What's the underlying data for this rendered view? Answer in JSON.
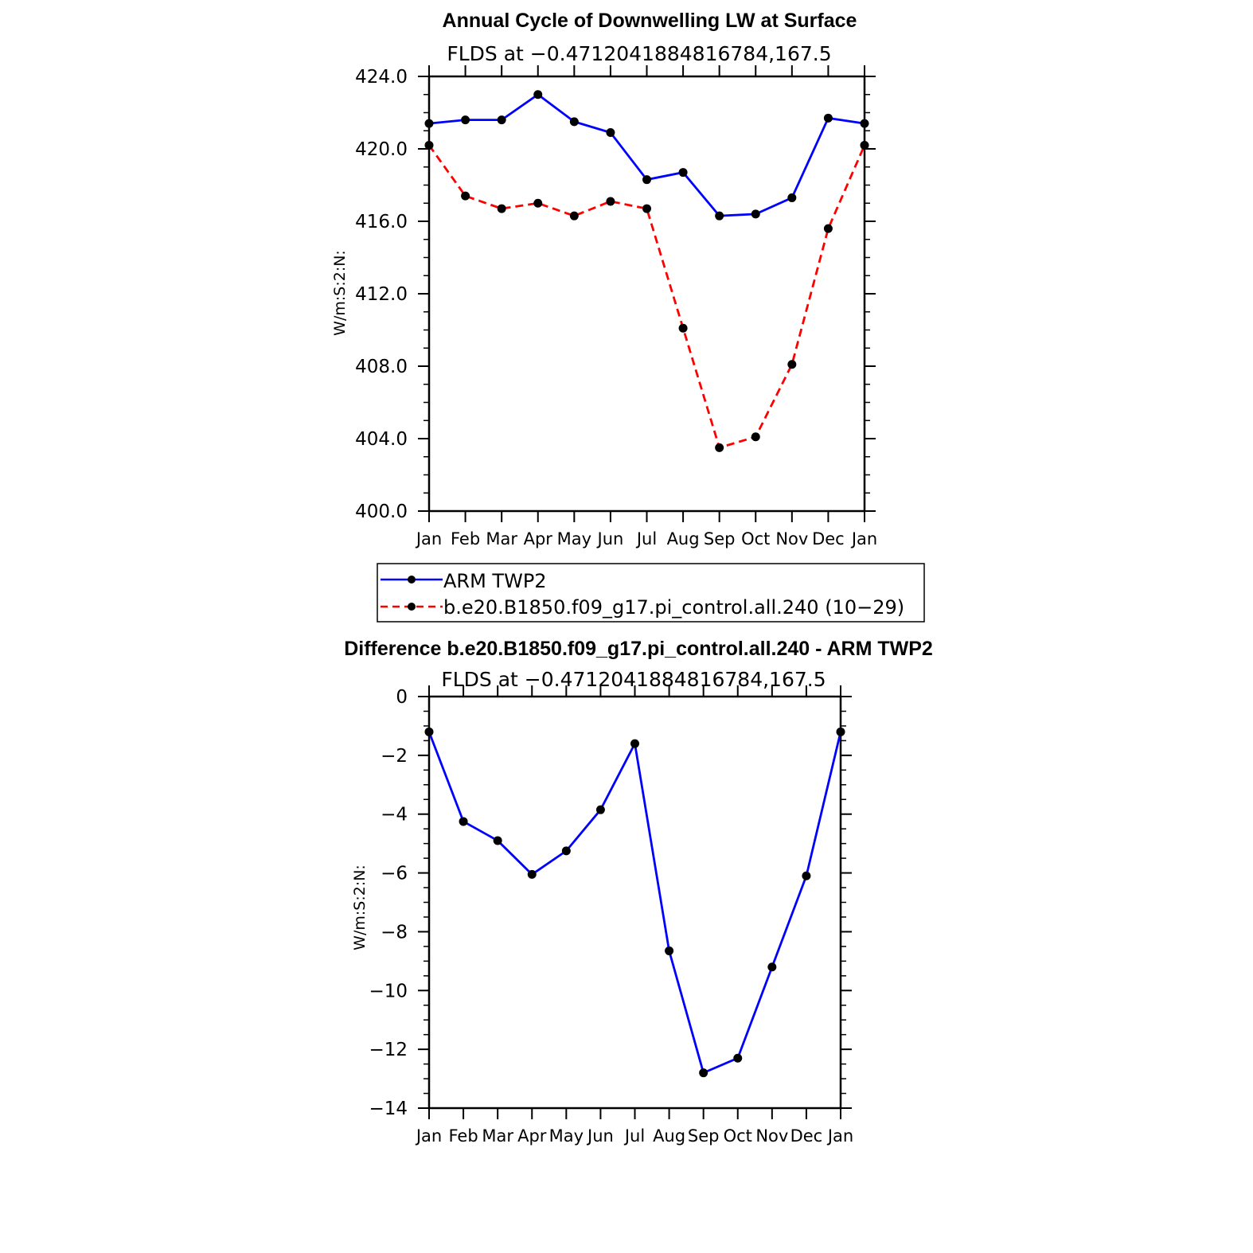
{
  "chart_data": [
    {
      "type": "line",
      "title": "Annual Cycle of Downwelling LW at Surface",
      "subtitle": "FLDS at −0.4712041884816784,167.5",
      "ylabel": "W/m:S:2:N:",
      "ylim": [
        400,
        424
      ],
      "yticks": [
        "400.0",
        "404.0",
        "408.0",
        "412.0",
        "416.0",
        "420.0",
        "424.0"
      ],
      "categories": [
        "Jan",
        "Feb",
        "Mar",
        "Apr",
        "May",
        "Jun",
        "Jul",
        "Aug",
        "Sep",
        "Oct",
        "Nov",
        "Dec",
        "Jan"
      ],
      "series": [
        {
          "name": "ARM TWP2",
          "color": "#0000ff",
          "dash": "solid",
          "values": [
            421.4,
            421.6,
            421.6,
            423.0,
            421.5,
            420.9,
            418.3,
            418.7,
            416.3,
            416.4,
            417.3,
            421.7,
            421.4
          ]
        },
        {
          "name": "b.e20.B1850.f09_g17.pi_control.all.240 (10−29)",
          "color": "#ff0000",
          "dash": "dashed",
          "values": [
            420.2,
            417.4,
            416.7,
            417.0,
            416.3,
            417.1,
            416.7,
            410.1,
            403.5,
            404.1,
            408.1,
            415.6,
            420.2
          ]
        }
      ]
    },
    {
      "type": "line",
      "title": "Difference b.e20.B1850.f09_g17.pi_control.all.240 - ARM TWP2",
      "subtitle": "FLDS at −0.4712041884816784,167.5",
      "ylabel": "W/m:S:2:N:",
      "ylim": [
        -14,
        0
      ],
      "yticks": [
        "−14",
        "−12",
        "−10",
        "−8",
        "−6",
        "−4",
        "−2",
        "0"
      ],
      "categories": [
        "Jan",
        "Feb",
        "Mar",
        "Apr",
        "May",
        "Jun",
        "Jul",
        "Aug",
        "Sep",
        "Oct",
        "Nov",
        "Dec",
        "Jan"
      ],
      "series": [
        {
          "name": "Difference",
          "color": "#0000ff",
          "dash": "solid",
          "values": [
            -1.2,
            -4.25,
            -4.9,
            -6.05,
            -5.25,
            -3.85,
            -1.6,
            -8.65,
            -12.8,
            -12.3,
            -9.2,
            -6.1,
            -1.2
          ]
        }
      ]
    }
  ]
}
